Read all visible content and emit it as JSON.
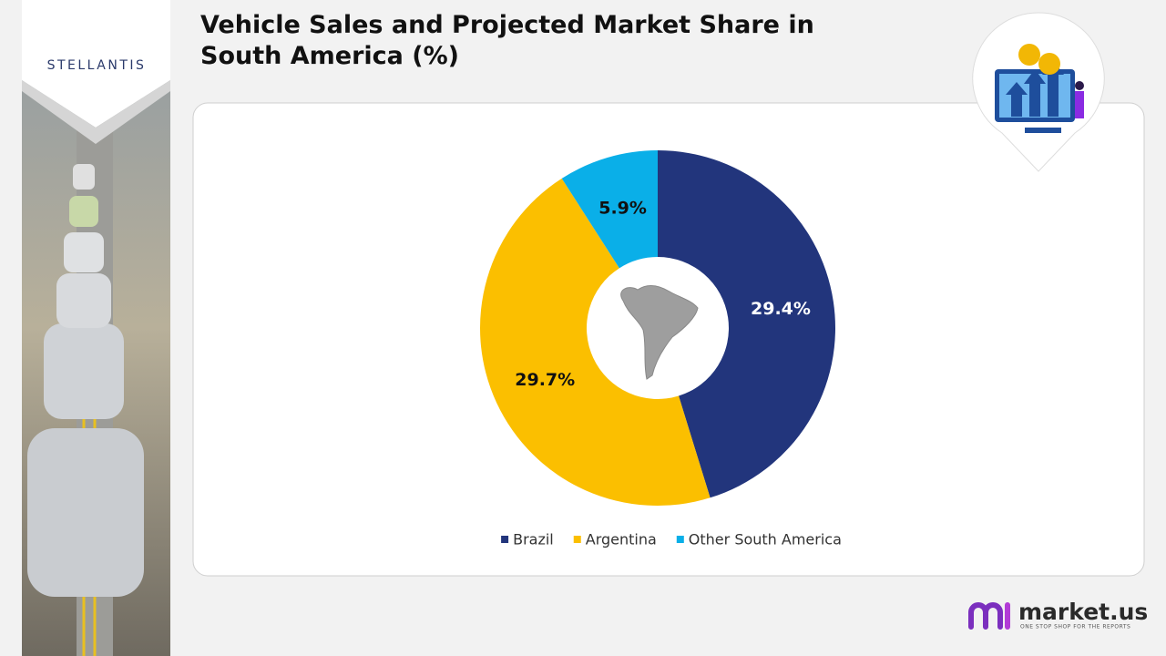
{
  "brand": "STELLANTIS",
  "publisher": {
    "name": "market.us",
    "tagline": "ONE STOP SHOP FOR THE REPORTS"
  },
  "chart_data": {
    "type": "donut",
    "title": "Vehicle Sales and Projected Market Share in South America (%)",
    "categories": [
      "Brazil",
      "Argentina",
      "Other South America"
    ],
    "values": [
      29.4,
      29.7,
      5.9
    ],
    "value_labels": [
      "29.4%",
      "29.7%",
      "5.9%"
    ],
    "colors": [
      "#22357c",
      "#fbbf00",
      "#0aafe8"
    ],
    "legend": "bottom"
  }
}
